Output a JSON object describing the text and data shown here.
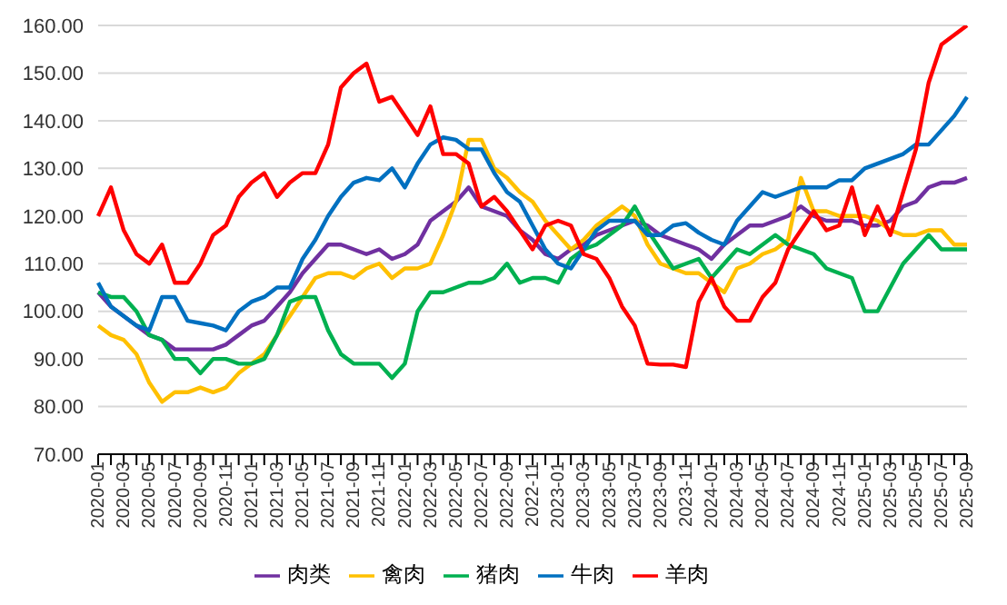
{
  "chart_data": {
    "type": "line",
    "categories": [
      "2020-01",
      null,
      "2020-03",
      null,
      "2020-05",
      null,
      "2020-07",
      null,
      "2020-09",
      null,
      "2020-11",
      null,
      "2021-01",
      null,
      "2021-03",
      null,
      "2021-05",
      null,
      "2021-07",
      null,
      "2021-09",
      null,
      "2021-11",
      null,
      "2022-01",
      null,
      "2022-03",
      null,
      "2022-05",
      null,
      "2022-07",
      null,
      "2022-09",
      null,
      "2022-11",
      null,
      "2023-01",
      null,
      "2023-03",
      null,
      "2023-05",
      null,
      "2023-07",
      null,
      "2023-09",
      null,
      "2023-11",
      null,
      "2024-01",
      null,
      "2024-03",
      null,
      "2024-05",
      null,
      "2024-07",
      null,
      "2024-09",
      null,
      "2024-11",
      null,
      "2025-01",
      null,
      "2025-03",
      null,
      "2025-05",
      null,
      "2025-07",
      null,
      "2025-09"
    ],
    "series": [
      {
        "name": "肉类",
        "color": "#7030a0",
        "values": [
          104,
          101,
          99,
          97,
          95,
          94,
          92,
          92,
          92,
          92,
          93,
          95,
          97,
          98,
          101,
          104,
          108,
          111,
          114,
          114,
          113,
          112,
          113,
          111,
          112,
          114,
          119,
          121,
          123,
          126,
          122,
          121,
          120,
          117,
          115,
          112,
          111,
          113,
          114,
          116,
          117,
          118,
          119,
          118,
          116,
          115,
          114,
          113,
          111,
          114,
          116,
          118,
          118,
          119,
          120,
          122,
          120,
          119,
          119,
          119,
          118,
          118,
          119,
          122,
          123,
          126,
          127,
          127,
          128
        ]
      },
      {
        "name": "禽肉",
        "color": "#ffc000",
        "values": [
          97,
          95,
          94,
          91,
          85,
          81,
          83,
          83,
          84,
          83,
          84,
          87,
          89,
          91,
          95,
          99,
          103,
          107,
          108,
          108,
          107,
          109,
          110,
          107,
          109,
          109,
          110,
          116,
          123,
          136,
          136,
          130,
          128,
          125,
          123,
          119,
          116,
          113,
          115,
          118,
          120,
          122,
          120,
          114,
          110,
          109,
          108,
          108,
          106,
          104,
          109,
          110,
          112,
          113,
          115,
          128,
          121,
          121,
          120,
          120,
          120,
          119,
          117,
          116,
          116,
          117,
          117,
          114,
          114
        ]
      },
      {
        "name": "猪肉",
        "color": "#00b050",
        "values": [
          104,
          103,
          103,
          100,
          95,
          94,
          90,
          90,
          87,
          90,
          90,
          89,
          89,
          90,
          95,
          102,
          103,
          103,
          96,
          91,
          89,
          89,
          89,
          86,
          89,
          100,
          104,
          104,
          105,
          106,
          106,
          107,
          110,
          106,
          107,
          107,
          106,
          111,
          113,
          114,
          116,
          118,
          122,
          117,
          113,
          109,
          110,
          111,
          107,
          110,
          113,
          112,
          114,
          116,
          114,
          113,
          112,
          109,
          108,
          107,
          100,
          100,
          105,
          110,
          113,
          116,
          113,
          113,
          113
        ]
      },
      {
        "name": "牛肉",
        "color": "#0070c0",
        "values": [
          106,
          101,
          99,
          97,
          96,
          103,
          103,
          98,
          97.5,
          97,
          96,
          100,
          102,
          103,
          105,
          105,
          111,
          115,
          120,
          124,
          127,
          128,
          127.5,
          130,
          126,
          131,
          135,
          136.5,
          136,
          134,
          134,
          129,
          125,
          123,
          118,
          113,
          110,
          109,
          113,
          117,
          119,
          119,
          119,
          116,
          116,
          118,
          118.5,
          116.5,
          115,
          114,
          119,
          122,
          125,
          124,
          125,
          126,
          126,
          126,
          127.5,
          127.5,
          130,
          131,
          132,
          133,
          135,
          135,
          138,
          141,
          145
        ]
      },
      {
        "name": "羊肉",
        "color": "#ff0000",
        "values": [
          120,
          126,
          117,
          112,
          110,
          114,
          106,
          106,
          110,
          116,
          118,
          124,
          127,
          129,
          124,
          127,
          129,
          129,
          135,
          147,
          150,
          152,
          144,
          145,
          141,
          137,
          143,
          133,
          133,
          131,
          122,
          124,
          121,
          117,
          113,
          118,
          119,
          118,
          112,
          111,
          107,
          101,
          97,
          89,
          88.8,
          88.8,
          88.3,
          102,
          107,
          101,
          98,
          98,
          103,
          106,
          113,
          117,
          121,
          117,
          118,
          126,
          116,
          122,
          116,
          125,
          134,
          148,
          156,
          158,
          160
        ]
      }
    ],
    "ylim": [
      70,
      160
    ],
    "yticks": [
      {
        "value": 70,
        "label": "70.00"
      },
      {
        "value": 80,
        "label": "80.00"
      },
      {
        "value": 90,
        "label": "90.00"
      },
      {
        "value": 100,
        "label": "100.00"
      },
      {
        "value": 110,
        "label": "110.00"
      },
      {
        "value": 120,
        "label": "120.00"
      },
      {
        "value": 130,
        "label": "130.00"
      },
      {
        "value": 140,
        "label": "140.00"
      },
      {
        "value": 150,
        "label": "150.00"
      },
      {
        "value": 160,
        "label": "160.00"
      }
    ],
    "grid": "y",
    "legend": "bottom",
    "marker": "none",
    "line_style": "solid"
  }
}
